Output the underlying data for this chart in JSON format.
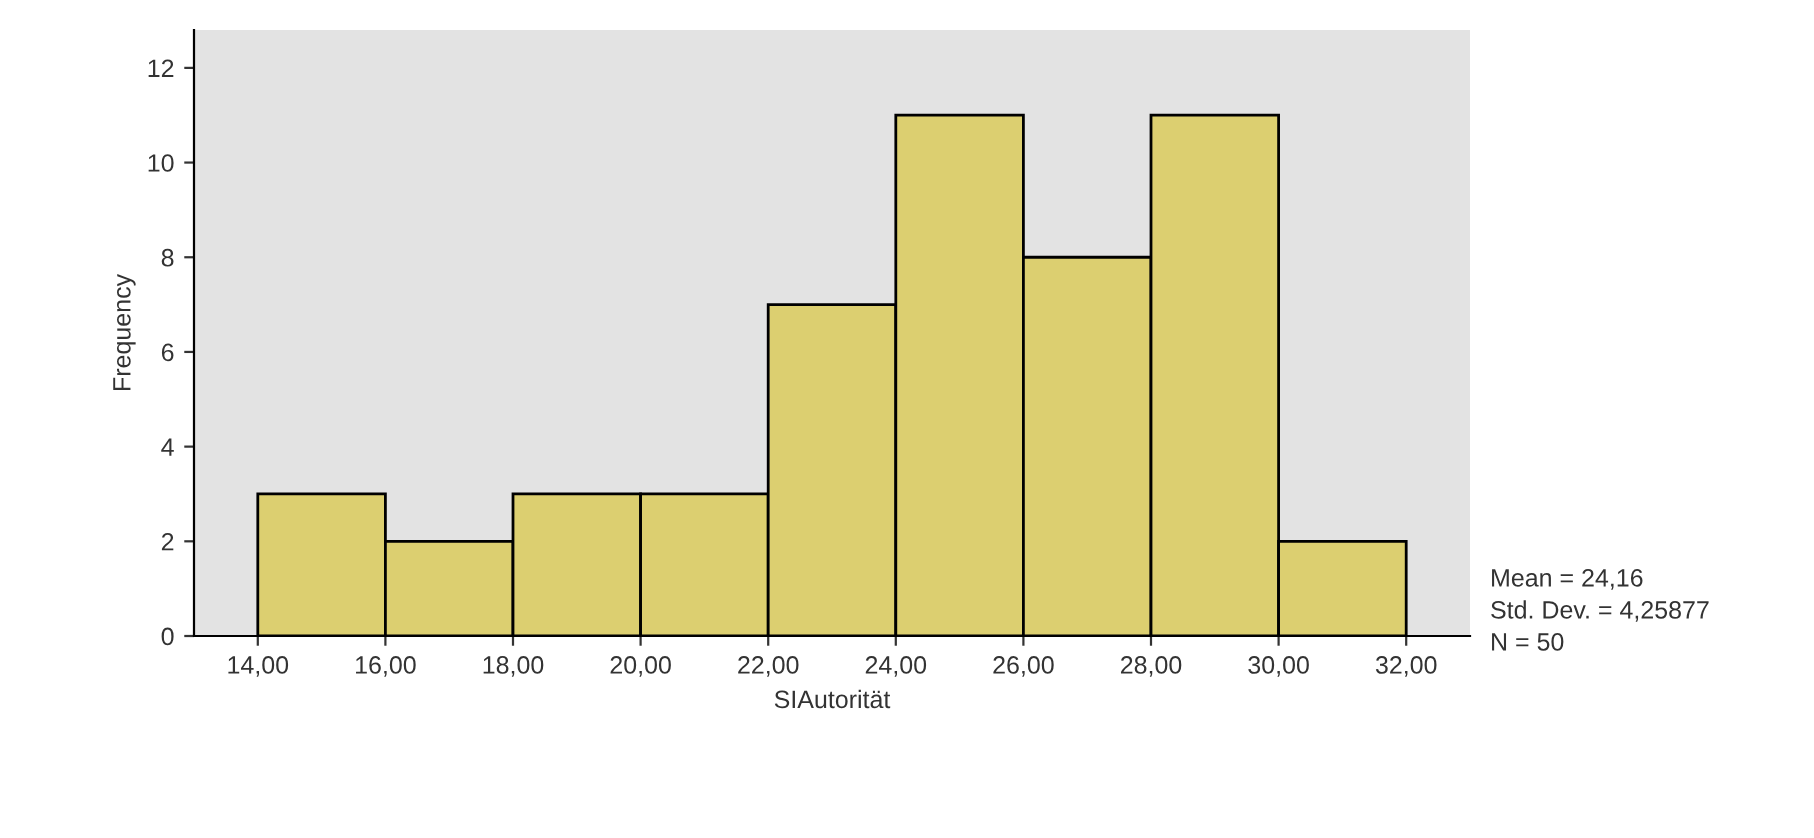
{
  "chart_data": {
    "type": "histogram",
    "xlabel": "SIAutorität",
    "ylabel": "Frequency",
    "bins": [
      14,
      16,
      18,
      20,
      22,
      24,
      26,
      28,
      30,
      32
    ],
    "values": [
      3,
      2,
      3,
      3,
      7,
      11,
      8,
      11,
      2
    ],
    "color": "#dccf70",
    "xlim": [
      13,
      33
    ],
    "ylim": [
      0,
      12.8
    ],
    "xticks": [
      {
        "value": 14,
        "label": "14,00"
      },
      {
        "value": 16,
        "label": "16,00"
      },
      {
        "value": 18,
        "label": "18,00"
      },
      {
        "value": 20,
        "label": "20,00"
      },
      {
        "value": 22,
        "label": "22,00"
      },
      {
        "value": 24,
        "label": "24,00"
      },
      {
        "value": 26,
        "label": "26,00"
      },
      {
        "value": 28,
        "label": "28,00"
      },
      {
        "value": 30,
        "label": "30,00"
      },
      {
        "value": 32,
        "label": "32,00"
      }
    ],
    "yticks": [
      0,
      2,
      4,
      6,
      8,
      10,
      12
    ],
    "grid": false,
    "annotations": [
      "Mean = 24,16",
      "Std. Dev. = 4,25877",
      "N = 50"
    ]
  }
}
